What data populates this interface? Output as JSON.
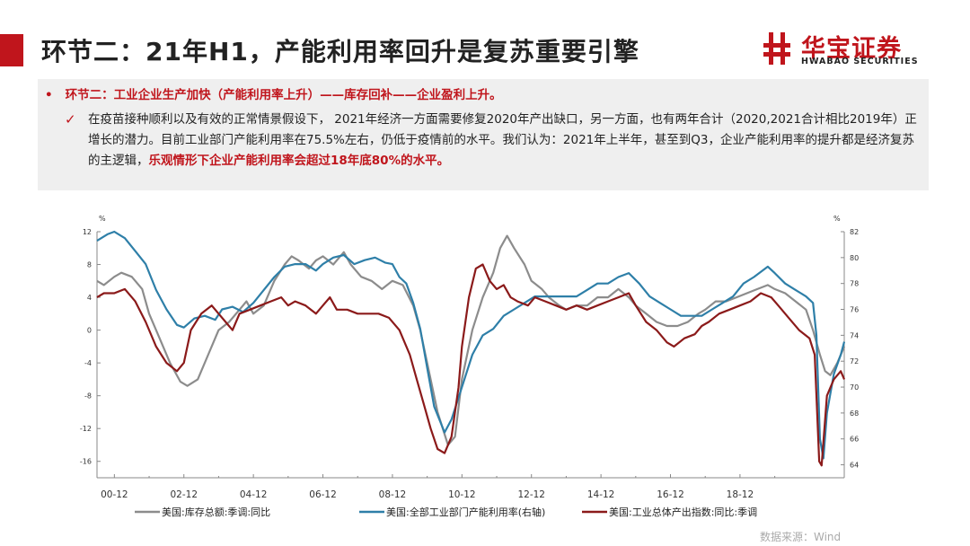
{
  "header": {
    "title": "环节二：21年H1，产能利用率回升是复苏重要引擎",
    "accent_color": "#c0151c"
  },
  "logo": {
    "name_cn": "华宝证券",
    "name_en": "HWABAO SECURITIES",
    "icon": "hwabao-logo-icon",
    "color": "#c0151c"
  },
  "summary": {
    "bullet": "环节二：工业企业生产加快（产能利用率上升）——库存回补——企业盈利上升。",
    "text_main": "在疫苗接种顺利以及有效的正常情景假设下， 2021年经济一方面需要修复2020年产出缺口，另一方面，也有两年合计（2020,2021合计相比2019年）正增长的潜力。目前工业部门产能利用率在75.5%左右，仍低于疫情前的水平。我们认为：2021年上半年，甚至到Q3，企业产能利用率的提升都是经济复苏的主逻辑，",
    "text_highlight": "乐观情形下企业产能利用率会超过18年底80%的水平。"
  },
  "chart_data": {
    "type": "line",
    "title": "",
    "x_range": [
      1999.5,
      2021.0
    ],
    "x_ticks": [
      2000,
      2002,
      2004,
      2006,
      2008,
      2010,
      2012,
      2014,
      2016,
      2018
    ],
    "x_tick_labels": [
      "00-12",
      "02-12",
      "04-12",
      "06-12",
      "08-12",
      "10-12",
      "12-12",
      "14-12",
      "16-12",
      "18-12"
    ],
    "left_axis": {
      "unit": "%",
      "range": [
        -18,
        12
      ],
      "ticks": [
        12,
        8,
        4,
        0,
        -4,
        -8,
        -12,
        -16
      ]
    },
    "right_axis": {
      "unit": "%",
      "range": [
        63,
        82
      ],
      "ticks": [
        82,
        80,
        78,
        76,
        74,
        72,
        70,
        68,
        66,
        64
      ]
    },
    "series": [
      {
        "name": "美国:库存总额:季调:同比",
        "color": "#8c8c8c",
        "axis": "left",
        "points": [
          [
            1999.5,
            6
          ],
          [
            1999.7,
            5.5
          ],
          [
            2000.0,
            6.5
          ],
          [
            2000.2,
            7
          ],
          [
            2000.5,
            6.5
          ],
          [
            2000.8,
            5
          ],
          [
            2001.0,
            2
          ],
          [
            2001.3,
            -1
          ],
          [
            2001.6,
            -4
          ],
          [
            2001.9,
            -6.3
          ],
          [
            2002.1,
            -6.8
          ],
          [
            2002.4,
            -6
          ],
          [
            2002.7,
            -3
          ],
          [
            2003.0,
            0
          ],
          [
            2003.3,
            1
          ],
          [
            2003.6,
            2.5
          ],
          [
            2003.8,
            3.5
          ],
          [
            2004.0,
            2
          ],
          [
            2004.3,
            3
          ],
          [
            2004.6,
            6
          ],
          [
            2004.9,
            8
          ],
          [
            2005.1,
            9
          ],
          [
            2005.3,
            8.5
          ],
          [
            2005.6,
            7.5
          ],
          [
            2005.8,
            8.5
          ],
          [
            2006.0,
            9
          ],
          [
            2006.3,
            8
          ],
          [
            2006.6,
            9.5
          ],
          [
            2006.8,
            8
          ],
          [
            2007.1,
            6.5
          ],
          [
            2007.4,
            6
          ],
          [
            2007.7,
            5
          ],
          [
            2008.0,
            6
          ],
          [
            2008.3,
            5.5
          ],
          [
            2008.6,
            3
          ],
          [
            2008.8,
            0
          ],
          [
            2009.0,
            -4
          ],
          [
            2009.3,
            -10
          ],
          [
            2009.6,
            -14
          ],
          [
            2009.8,
            -13
          ],
          [
            2010.0,
            -6
          ],
          [
            2010.3,
            0
          ],
          [
            2010.6,
            4
          ],
          [
            2010.9,
            7
          ],
          [
            2011.1,
            10
          ],
          [
            2011.3,
            11.5
          ],
          [
            2011.5,
            10
          ],
          [
            2011.8,
            8
          ],
          [
            2012.0,
            6
          ],
          [
            2012.3,
            5
          ],
          [
            2012.5,
            4
          ],
          [
            2012.8,
            3
          ],
          [
            2013.0,
            2.5
          ],
          [
            2013.3,
            3
          ],
          [
            2013.6,
            3
          ],
          [
            2013.9,
            4
          ],
          [
            2014.2,
            4
          ],
          [
            2014.5,
            5
          ],
          [
            2014.8,
            4
          ],
          [
            2015.0,
            3
          ],
          [
            2015.3,
            2
          ],
          [
            2015.6,
            1
          ],
          [
            2015.9,
            0.5
          ],
          [
            2016.2,
            0.5
          ],
          [
            2016.5,
            1
          ],
          [
            2016.8,
            2
          ],
          [
            2017.0,
            2.5
          ],
          [
            2017.3,
            3.5
          ],
          [
            2017.6,
            3.5
          ],
          [
            2017.9,
            4
          ],
          [
            2018.2,
            4.5
          ],
          [
            2018.5,
            5
          ],
          [
            2018.8,
            5.5
          ],
          [
            2019.0,
            5
          ],
          [
            2019.3,
            4.5
          ],
          [
            2019.6,
            3.5
          ],
          [
            2019.9,
            2.5
          ],
          [
            2020.1,
            0
          ],
          [
            2020.3,
            -3
          ],
          [
            2020.45,
            -5
          ],
          [
            2020.6,
            -5.5
          ],
          [
            2020.8,
            -4
          ],
          [
            2021.0,
            -2
          ]
        ]
      },
      {
        "name": "美国:全部工业部门产能利用率(右轴)",
        "color": "#2e7fa8",
        "axis": "right",
        "points": [
          [
            1999.5,
            81.3
          ],
          [
            1999.8,
            81.8
          ],
          [
            2000.0,
            82
          ],
          [
            2000.3,
            81.5
          ],
          [
            2000.6,
            80.5
          ],
          [
            2000.9,
            79.5
          ],
          [
            2001.2,
            77.5
          ],
          [
            2001.5,
            76
          ],
          [
            2001.8,
            74.8
          ],
          [
            2002.0,
            74.6
          ],
          [
            2002.3,
            75.3
          ],
          [
            2002.6,
            75.5
          ],
          [
            2002.9,
            75.2
          ],
          [
            2003.1,
            76
          ],
          [
            2003.4,
            76.2
          ],
          [
            2003.7,
            75.8
          ],
          [
            2004.0,
            76.5
          ],
          [
            2004.3,
            77.5
          ],
          [
            2004.6,
            78.5
          ],
          [
            2004.9,
            79.3
          ],
          [
            2005.2,
            79.5
          ],
          [
            2005.5,
            79.5
          ],
          [
            2005.8,
            79
          ],
          [
            2006.0,
            79.5
          ],
          [
            2006.3,
            80
          ],
          [
            2006.6,
            80.2
          ],
          [
            2006.9,
            79.5
          ],
          [
            2007.2,
            79.8
          ],
          [
            2007.5,
            80
          ],
          [
            2007.8,
            79.6
          ],
          [
            2008.0,
            79.5
          ],
          [
            2008.2,
            78.5
          ],
          [
            2008.4,
            78
          ],
          [
            2008.6,
            76.5
          ],
          [
            2008.8,
            74.5
          ],
          [
            2009.0,
            71.5
          ],
          [
            2009.2,
            68.5
          ],
          [
            2009.5,
            66.5
          ],
          [
            2009.7,
            67.5
          ],
          [
            2010.0,
            70
          ],
          [
            2010.3,
            72.5
          ],
          [
            2010.6,
            74
          ],
          [
            2010.9,
            74.5
          ],
          [
            2011.2,
            75.5
          ],
          [
            2011.5,
            76
          ],
          [
            2011.8,
            76.5
          ],
          [
            2012.1,
            77
          ],
          [
            2012.4,
            77
          ],
          [
            2012.7,
            77
          ],
          [
            2013.0,
            77
          ],
          [
            2013.3,
            77
          ],
          [
            2013.6,
            77.5
          ],
          [
            2013.9,
            78
          ],
          [
            2014.2,
            78
          ],
          [
            2014.5,
            78.5
          ],
          [
            2014.8,
            78.8
          ],
          [
            2015.1,
            78
          ],
          [
            2015.4,
            77
          ],
          [
            2015.7,
            76.5
          ],
          [
            2016.0,
            76
          ],
          [
            2016.3,
            75.5
          ],
          [
            2016.6,
            75.5
          ],
          [
            2016.9,
            75.5
          ],
          [
            2017.2,
            76
          ],
          [
            2017.5,
            76.5
          ],
          [
            2017.8,
            77
          ],
          [
            2018.1,
            78
          ],
          [
            2018.4,
            78.5
          ],
          [
            2018.8,
            79.3
          ],
          [
            2019.0,
            78.8
          ],
          [
            2019.3,
            78
          ],
          [
            2019.6,
            77.5
          ],
          [
            2019.9,
            77
          ],
          [
            2020.1,
            76.5
          ],
          [
            2020.2,
            74
          ],
          [
            2020.3,
            66
          ],
          [
            2020.4,
            64.5
          ],
          [
            2020.5,
            68
          ],
          [
            2020.7,
            71
          ],
          [
            2020.9,
            72.5
          ],
          [
            2021.0,
            73.5
          ]
        ]
      },
      {
        "name": "美国:工业总体产出指数:同比:季调",
        "color": "#8b1a1a",
        "axis": "left",
        "points": [
          [
            1999.5,
            4
          ],
          [
            1999.7,
            4.5
          ],
          [
            2000.0,
            4.5
          ],
          [
            2000.3,
            5
          ],
          [
            2000.6,
            3.5
          ],
          [
            2000.9,
            1
          ],
          [
            2001.2,
            -2
          ],
          [
            2001.5,
            -4
          ],
          [
            2001.8,
            -5
          ],
          [
            2002.0,
            -4
          ],
          [
            2002.2,
            0
          ],
          [
            2002.5,
            2
          ],
          [
            2002.8,
            3
          ],
          [
            2003.0,
            2
          ],
          [
            2003.2,
            1
          ],
          [
            2003.4,
            0
          ],
          [
            2003.6,
            2
          ],
          [
            2003.9,
            2.5
          ],
          [
            2004.2,
            3
          ],
          [
            2004.5,
            3.5
          ],
          [
            2004.8,
            4
          ],
          [
            2005.0,
            3
          ],
          [
            2005.2,
            3.5
          ],
          [
            2005.5,
            3
          ],
          [
            2005.8,
            2
          ],
          [
            2006.0,
            3
          ],
          [
            2006.2,
            4
          ],
          [
            2006.4,
            2.5
          ],
          [
            2006.7,
            2.5
          ],
          [
            2007.0,
            2
          ],
          [
            2007.3,
            2
          ],
          [
            2007.6,
            2
          ],
          [
            2007.9,
            1.5
          ],
          [
            2008.2,
            0
          ],
          [
            2008.5,
            -3
          ],
          [
            2008.7,
            -6
          ],
          [
            2008.9,
            -9
          ],
          [
            2009.1,
            -12
          ],
          [
            2009.3,
            -14.5
          ],
          [
            2009.5,
            -15
          ],
          [
            2009.7,
            -13
          ],
          [
            2009.9,
            -7
          ],
          [
            2010.0,
            -2
          ],
          [
            2010.2,
            4
          ],
          [
            2010.4,
            7.5
          ],
          [
            2010.6,
            8
          ],
          [
            2010.8,
            6
          ],
          [
            2011.0,
            5
          ],
          [
            2011.2,
            5.5
          ],
          [
            2011.4,
            4
          ],
          [
            2011.6,
            3.5
          ],
          [
            2011.9,
            3
          ],
          [
            2012.1,
            4
          ],
          [
            2012.4,
            3.5
          ],
          [
            2012.7,
            3
          ],
          [
            2013.0,
            2.5
          ],
          [
            2013.3,
            3
          ],
          [
            2013.6,
            2.5
          ],
          [
            2013.9,
            3
          ],
          [
            2014.2,
            3.5
          ],
          [
            2014.5,
            4
          ],
          [
            2014.8,
            4.5
          ],
          [
            2015.0,
            3
          ],
          [
            2015.3,
            1
          ],
          [
            2015.6,
            0
          ],
          [
            2015.9,
            -1.5
          ],
          [
            2016.1,
            -2
          ],
          [
            2016.4,
            -1
          ],
          [
            2016.7,
            -0.5
          ],
          [
            2016.9,
            0.5
          ],
          [
            2017.1,
            1
          ],
          [
            2017.4,
            2
          ],
          [
            2017.7,
            2.5
          ],
          [
            2018.0,
            3
          ],
          [
            2018.3,
            3.5
          ],
          [
            2018.6,
            4.5
          ],
          [
            2018.9,
            4
          ],
          [
            2019.1,
            3
          ],
          [
            2019.4,
            1.5
          ],
          [
            2019.7,
            0
          ],
          [
            2020.0,
            -1
          ],
          [
            2020.15,
            -3
          ],
          [
            2020.28,
            -16
          ],
          [
            2020.35,
            -16.5
          ],
          [
            2020.5,
            -8
          ],
          [
            2020.7,
            -6
          ],
          [
            2020.9,
            -5
          ],
          [
            2021.0,
            -6
          ]
        ]
      }
    ],
    "legend": [
      "美国:库存总额:季调:同比",
      "美国:全部工业部门产能利用率(右轴)",
      "美国:工业总体产出指数:同比:季调"
    ],
    "source": "数据来源：Wind"
  }
}
